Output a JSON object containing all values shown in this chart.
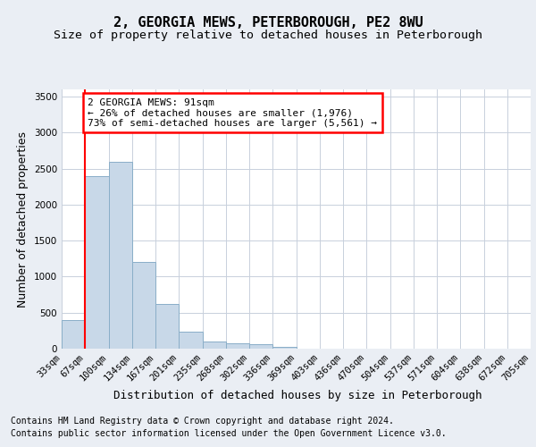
{
  "title": "2, GEORGIA MEWS, PETERBOROUGH, PE2 8WU",
  "subtitle": "Size of property relative to detached houses in Peterborough",
  "xlabel": "Distribution of detached houses by size in Peterborough",
  "ylabel": "Number of detached properties",
  "footer_line1": "Contains HM Land Registry data © Crown copyright and database right 2024.",
  "footer_line2": "Contains public sector information licensed under the Open Government Licence v3.0.",
  "bin_labels": [
    "33sqm",
    "67sqm",
    "100sqm",
    "134sqm",
    "167sqm",
    "201sqm",
    "235sqm",
    "268sqm",
    "302sqm",
    "336sqm",
    "369sqm",
    "403sqm",
    "436sqm",
    "470sqm",
    "504sqm",
    "537sqm",
    "571sqm",
    "604sqm",
    "638sqm",
    "672sqm",
    "705sqm"
  ],
  "bar_values": [
    400,
    2400,
    2600,
    1200,
    620,
    240,
    100,
    70,
    60,
    30,
    0,
    0,
    0,
    0,
    0,
    0,
    0,
    0,
    0,
    0
  ],
  "bar_color": "#c8d8e8",
  "bar_edge_color": "#8aaec8",
  "property_line_x": 1.0,
  "property_line_label": "2 GEORGIA MEWS: 91sqm",
  "annotation_line1": "2 GEORGIA MEWS: 91sqm",
  "annotation_line2": "← 26% of detached houses are smaller (1,976)",
  "annotation_line3": "73% of semi-detached houses are larger (5,561) →",
  "annotation_box_color": "white",
  "annotation_box_edge": "red",
  "line_color": "red",
  "ylim": [
    0,
    3600
  ],
  "yticks": [
    0,
    500,
    1000,
    1500,
    2000,
    2500,
    3000,
    3500
  ],
  "background_color": "#eaeef4",
  "plot_background": "white",
  "grid_color": "#c8d0dc",
  "title_fontsize": 11,
  "subtitle_fontsize": 9.5,
  "axis_label_fontsize": 9,
  "tick_fontsize": 7.5,
  "footer_fontsize": 7.0,
  "annotation_fontsize": 8
}
